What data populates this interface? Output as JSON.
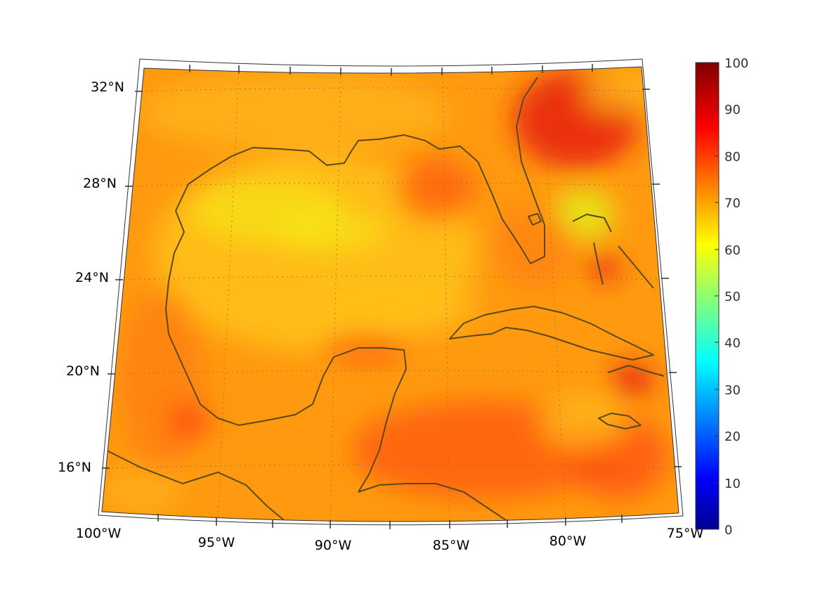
{
  "map": {
    "projection": "conic",
    "lon_labels": [
      "100°W",
      "95°W",
      "90°W",
      "85°W",
      "80°W",
      "75°W"
    ],
    "lat_labels": [
      "16°N",
      "20°N",
      "24°N",
      "28°N",
      "32°N"
    ],
    "colors": {
      "field_base": "#ff9a10",
      "field_light": "#ffc21a",
      "field_yellow": "#f4ec1a",
      "field_warm": "#ff5a10",
      "field_red": "#e8200a",
      "coastline": "#5a4a1a",
      "graticule": "#8a6a3a",
      "frame": "#333333"
    }
  },
  "colorbar": {
    "colormap": "jet",
    "ticks": [
      "0",
      "10",
      "20",
      "30",
      "40",
      "50",
      "60",
      "70",
      "80",
      "90",
      "100"
    ],
    "range": [
      0,
      100
    ]
  }
}
